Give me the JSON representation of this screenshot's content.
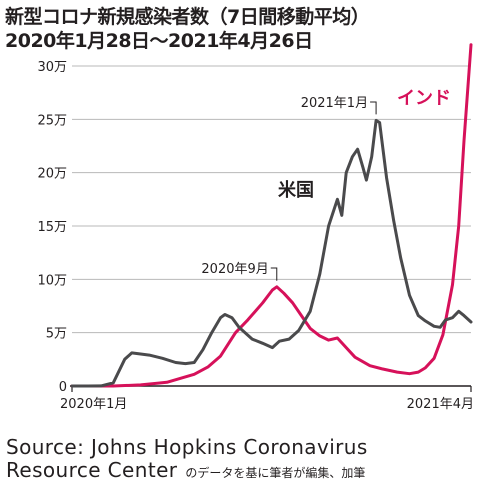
{
  "chart_data": {
    "type": "line",
    "title": "新型コロナ新規感染者数（7日間移動平均）",
    "subtitle": "2020年1月28日〜2021年4月26日",
    "y_tick_labels": [
      "0",
      "5万",
      "10万",
      "15万",
      "20万",
      "25万",
      "30万"
    ],
    "y_ticks": [
      0,
      50000,
      100000,
      150000,
      200000,
      250000,
      300000
    ],
    "ylim": [
      0,
      300000
    ],
    "x_tick_labels": [
      "2020年1月",
      "2021年4月"
    ],
    "x_range": [
      "2020-01-28",
      "2021-04-26"
    ],
    "grid": true,
    "series": [
      {
        "name": "米国",
        "color": "#4a4a4c",
        "points": [
          [
            "2020-01-28",
            0
          ],
          [
            "2020-02-15",
            0
          ],
          [
            "2020-03-01",
            100
          ],
          [
            "2020-03-15",
            3000
          ],
          [
            "2020-03-28",
            25000
          ],
          [
            "2020-04-05",
            31000
          ],
          [
            "2020-04-15",
            30000
          ],
          [
            "2020-04-25",
            29000
          ],
          [
            "2020-05-10",
            26000
          ],
          [
            "2020-05-25",
            22000
          ],
          [
            "2020-06-05",
            21000
          ],
          [
            "2020-06-15",
            22000
          ],
          [
            "2020-06-25",
            34000
          ],
          [
            "2020-07-05",
            50000
          ],
          [
            "2020-07-15",
            64000
          ],
          [
            "2020-07-20",
            67000
          ],
          [
            "2020-07-28",
            64000
          ],
          [
            "2020-08-05",
            55000
          ],
          [
            "2020-08-20",
            44000
          ],
          [
            "2020-09-01",
            40000
          ],
          [
            "2020-09-12",
            36000
          ],
          [
            "2020-09-20",
            42000
          ],
          [
            "2020-10-01",
            44000
          ],
          [
            "2020-10-12",
            52000
          ],
          [
            "2020-10-25",
            70000
          ],
          [
            "2020-11-05",
            105000
          ],
          [
            "2020-11-15",
            150000
          ],
          [
            "2020-11-25",
            175000
          ],
          [
            "2020-11-30",
            160000
          ],
          [
            "2020-12-05",
            200000
          ],
          [
            "2020-12-12",
            215000
          ],
          [
            "2020-12-18",
            222000
          ],
          [
            "2020-12-24",
            205000
          ],
          [
            "2020-12-28",
            193000
          ],
          [
            "2021-01-03",
            215000
          ],
          [
            "2021-01-08",
            249000
          ],
          [
            "2021-01-12",
            247000
          ],
          [
            "2021-01-20",
            195000
          ],
          [
            "2021-01-28",
            155000
          ],
          [
            "2021-02-05",
            120000
          ],
          [
            "2021-02-15",
            85000
          ],
          [
            "2021-02-25",
            66000
          ],
          [
            "2021-03-05",
            61000
          ],
          [
            "2021-03-15",
            56000
          ],
          [
            "2021-03-22",
            55000
          ],
          [
            "2021-03-28",
            62000
          ],
          [
            "2021-04-05",
            64000
          ],
          [
            "2021-04-12",
            70000
          ],
          [
            "2021-04-18",
            66000
          ],
          [
            "2021-04-26",
            60000
          ]
        ]
      },
      {
        "name": "インド",
        "color": "#d6115a",
        "points": [
          [
            "2020-01-28",
            0
          ],
          [
            "2020-03-15",
            0
          ],
          [
            "2020-04-15",
            1000
          ],
          [
            "2020-05-15",
            3500
          ],
          [
            "2020-06-15",
            11000
          ],
          [
            "2020-07-01",
            18000
          ],
          [
            "2020-07-15",
            28000
          ],
          [
            "2020-08-01",
            50000
          ],
          [
            "2020-08-15",
            62000
          ],
          [
            "2020-09-01",
            78000
          ],
          [
            "2020-09-12",
            90000
          ],
          [
            "2020-09-17",
            93000
          ],
          [
            "2020-09-25",
            87000
          ],
          [
            "2020-10-05",
            78000
          ],
          [
            "2020-10-15",
            66000
          ],
          [
            "2020-10-25",
            54000
          ],
          [
            "2020-11-05",
            47000
          ],
          [
            "2020-11-15",
            43000
          ],
          [
            "2020-11-25",
            45000
          ],
          [
            "2020-12-05",
            36000
          ],
          [
            "2020-12-15",
            27000
          ],
          [
            "2021-01-01",
            19000
          ],
          [
            "2021-01-15",
            16000
          ],
          [
            "2021-02-01",
            13000
          ],
          [
            "2021-02-15",
            11500
          ],
          [
            "2021-02-25",
            13000
          ],
          [
            "2021-03-05",
            17000
          ],
          [
            "2021-03-15",
            26000
          ],
          [
            "2021-03-25",
            48000
          ],
          [
            "2021-04-05",
            95000
          ],
          [
            "2021-04-12",
            150000
          ],
          [
            "2021-04-18",
            230000
          ],
          [
            "2021-04-26",
            320000
          ]
        ]
      }
    ],
    "annotations": [
      {
        "text": "2020年9月",
        "date": "2020-09-17",
        "series": "インド"
      },
      {
        "text": "2021年1月",
        "date": "2021-01-08",
        "series": "米国"
      }
    ]
  },
  "source": {
    "line1": "Source: Johns Hopkins Coronavirus",
    "line2": "Resource Center",
    "note": "のデータを基に筆者が編集、加筆"
  }
}
